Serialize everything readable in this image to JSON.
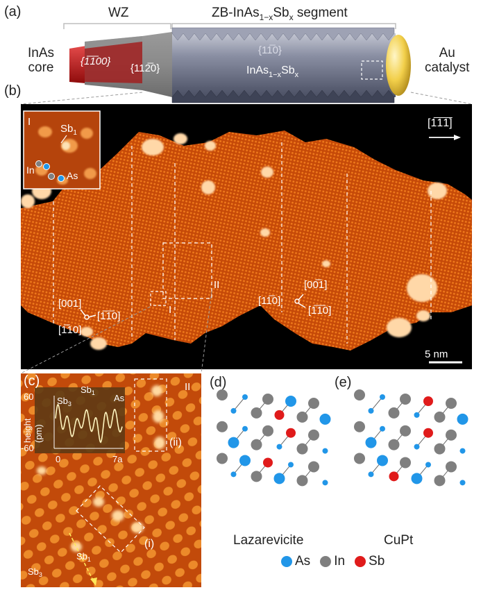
{
  "panel_a": {
    "label": "(a)",
    "wz": "WZ",
    "zb_pre": "ZB-InAs",
    "zb_sub": "1−x",
    "zb_mid": "Sb",
    "zb_sub2": "x",
    "zb_post": " segment",
    "core_line1": "InAs",
    "core_line2": "core",
    "facet_wz1": "{1̅1̅00}",
    "facet_wz2": "{112̅0}",
    "facet_zb": "{11̅0}",
    "segment_pre": "InAs",
    "segment_sub": "1−x",
    "segment_mid": "Sb",
    "segment_sub2": "x",
    "cat_line1": "Au",
    "cat_line2": "catalyst"
  },
  "panel_b": {
    "label": "(b)",
    "direction": "[1̅1̅1̅]",
    "inset_label": "I",
    "inset_sb": "Sb",
    "inset_sb_sub": "1",
    "inset_in": "In",
    "inset_as": "As",
    "region_I": "I",
    "region_II": "II",
    "dirs_left": [
      "[001]",
      "[1̅10]",
      "[1̅1̅0]"
    ],
    "dirs_right": [
      "[00̅1]",
      "[11̅0]",
      "[1̅1̅0]"
    ],
    "scalebar": "5 nm"
  },
  "panel_c": {
    "label": "(c)",
    "region": "II",
    "ylabel": "height",
    "yunit": "(pm)",
    "yticks": [
      "60",
      "-60"
    ],
    "xticks": [
      "0",
      "7a"
    ],
    "sb3": "Sb",
    "sb3_sub": "3",
    "sb1": "Sb",
    "sb1_sub": "1",
    "as": "As",
    "box_i": "(i)",
    "box_ii": "(ii)",
    "arrow_sb3": "Sb",
    "arrow_sb3_sub": "3",
    "arrow_sb1": "Sb",
    "arrow_sb1_sub": "1"
  },
  "panel_d": {
    "label": "(d)",
    "caption": "Lazarevicite"
  },
  "panel_e": {
    "label": "(e)",
    "caption": "CuPt"
  },
  "legend": [
    "As",
    "In",
    "Sb"
  ],
  "colors": {
    "as": "#2196e8",
    "in": "#7f7f7f",
    "sb": "#e01b1b",
    "stm_dark": "#000000",
    "stm_mid": "#d2520a",
    "stm_bright": "#ffd9a0"
  }
}
